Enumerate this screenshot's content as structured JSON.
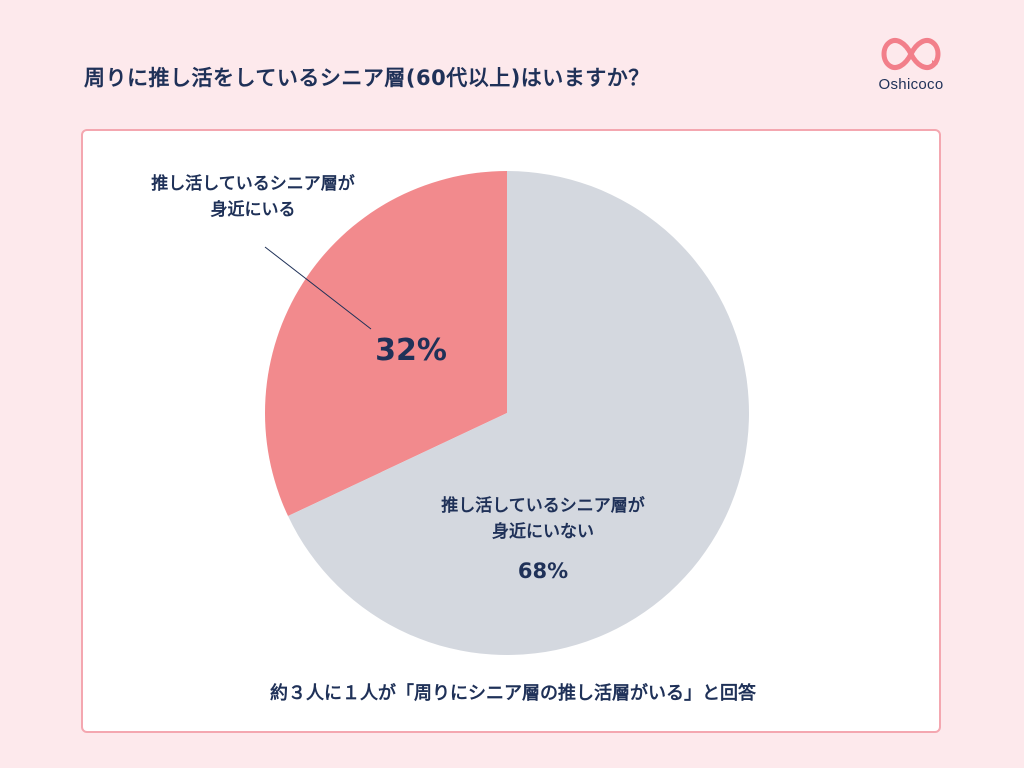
{
  "title": "周りに推し活をしているシニア層(60代以上)はいますか？",
  "logo": {
    "text": "Oshicoco",
    "icon": "infinity-heart-icon",
    "color": "#f27f8a"
  },
  "chart_data": {
    "type": "pie",
    "slices": [
      {
        "label_line1": "推し活しているシニア層が",
        "label_line2": "身近にいる",
        "value": 32,
        "value_text": "32%",
        "color": "#f28a8d"
      },
      {
        "label_line1": "推し活しているシニア層が",
        "label_line2": "身近にいない",
        "value": 68,
        "value_text": "68%",
        "color": "#d4d8df"
      }
    ]
  },
  "caption": "約３人に１人が「周りにシニア層の推し活層がいる」と回答"
}
